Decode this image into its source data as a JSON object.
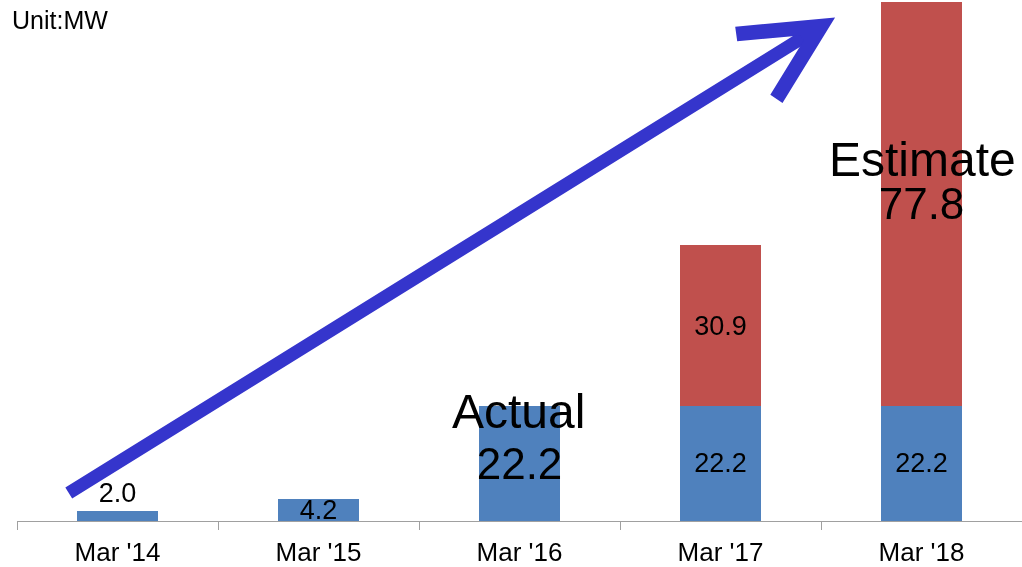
{
  "chart_data": {
    "type": "bar",
    "stacked": true,
    "categories": [
      "Mar '14",
      "Mar '15",
      "Mar '16",
      "Mar '17",
      "Mar '18"
    ],
    "series": [
      {
        "color": "#4f81bd",
        "values": [
          2.0,
          4.2,
          22.2,
          22.2,
          22.2
        ],
        "value_labels": [
          "2.0",
          "4.2",
          "22.2",
          "22.2",
          "22.2"
        ]
      },
      {
        "color": "#c0504d",
        "values": [
          null,
          null,
          null,
          30.9,
          77.8
        ],
        "value_labels": [
          null,
          null,
          null,
          "30.9",
          "77.8"
        ]
      }
    ],
    "ylim": [
      0,
      100
    ],
    "tick_labels": "x",
    "annotations": [
      "Unit:MW",
      "Actual",
      "Estimate"
    ]
  }
}
